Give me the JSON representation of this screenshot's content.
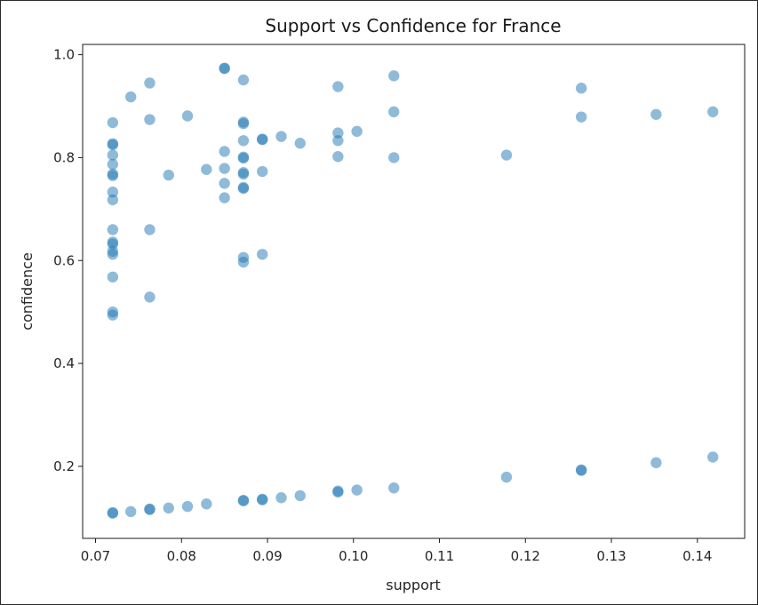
{
  "chart_data": {
    "type": "scatter",
    "title": "Support vs Confidence for France",
    "xlabel": "support",
    "ylabel": "confidence",
    "xlim": [
      0.0685,
      0.1455
    ],
    "ylim": [
      0.06,
      1.02
    ],
    "xticks": [
      0.07,
      0.08,
      0.09,
      0.1,
      0.11,
      0.12,
      0.13,
      0.14
    ],
    "xtick_labels": [
      "0.07",
      "0.08",
      "0.09",
      "0.10",
      "0.11",
      "0.12",
      "0.13",
      "0.14"
    ],
    "yticks": [
      0.2,
      0.4,
      0.6,
      0.8,
      1.0
    ],
    "ytick_labels": [
      "0.2",
      "0.4",
      "0.6",
      "0.8",
      "1.0"
    ],
    "grid": false,
    "marker_color": "#1f77b4",
    "marker_alpha": 0.5,
    "series": [
      {
        "points": [
          [
            0.072,
            0.868
          ],
          [
            0.072,
            0.827
          ],
          [
            0.072,
            0.825
          ],
          [
            0.072,
            0.805
          ],
          [
            0.072,
            0.787
          ],
          [
            0.072,
            0.768
          ],
          [
            0.072,
            0.765
          ],
          [
            0.072,
            0.733
          ],
          [
            0.072,
            0.718
          ],
          [
            0.072,
            0.66
          ],
          [
            0.072,
            0.636
          ],
          [
            0.072,
            0.632
          ],
          [
            0.072,
            0.618
          ],
          [
            0.072,
            0.612
          ],
          [
            0.072,
            0.568
          ],
          [
            0.072,
            0.5
          ],
          [
            0.072,
            0.494
          ],
          [
            0.072,
            0.11
          ],
          [
            0.072,
            0.109
          ],
          [
            0.0741,
            0.918
          ],
          [
            0.0741,
            0.112
          ],
          [
            0.0763,
            0.945
          ],
          [
            0.0763,
            0.874
          ],
          [
            0.0763,
            0.66
          ],
          [
            0.0763,
            0.529
          ],
          [
            0.0763,
            0.116
          ],
          [
            0.0763,
            0.117
          ],
          [
            0.0785,
            0.766
          ],
          [
            0.0785,
            0.119
          ],
          [
            0.0807,
            0.881
          ],
          [
            0.0807,
            0.122
          ],
          [
            0.0829,
            0.777
          ],
          [
            0.0829,
            0.127
          ],
          [
            0.085,
            0.974
          ],
          [
            0.085,
            0.973
          ],
          [
            0.085,
            0.812
          ],
          [
            0.085,
            0.779
          ],
          [
            0.085,
            0.75
          ],
          [
            0.085,
            0.722
          ],
          [
            0.0872,
            0.951
          ],
          [
            0.0872,
            0.869
          ],
          [
            0.0872,
            0.866
          ],
          [
            0.0872,
            0.833
          ],
          [
            0.0872,
            0.801
          ],
          [
            0.0872,
            0.799
          ],
          [
            0.0872,
            0.771
          ],
          [
            0.0872,
            0.768
          ],
          [
            0.0872,
            0.742
          ],
          [
            0.0872,
            0.74
          ],
          [
            0.0872,
            0.606
          ],
          [
            0.0872,
            0.597
          ],
          [
            0.0872,
            0.133
          ],
          [
            0.0872,
            0.134
          ],
          [
            0.0894,
            0.836
          ],
          [
            0.0894,
            0.835
          ],
          [
            0.0894,
            0.773
          ],
          [
            0.0894,
            0.612
          ],
          [
            0.0894,
            0.135
          ],
          [
            0.0894,
            0.136
          ],
          [
            0.0916,
            0.841
          ],
          [
            0.0916,
            0.139
          ],
          [
            0.0938,
            0.828
          ],
          [
            0.0938,
            0.143
          ],
          [
            0.0982,
            0.938
          ],
          [
            0.0982,
            0.848
          ],
          [
            0.0982,
            0.833
          ],
          [
            0.0982,
            0.802
          ],
          [
            0.0982,
            0.15
          ],
          [
            0.0982,
            0.152
          ],
          [
            0.1004,
            0.851
          ],
          [
            0.1004,
            0.154
          ],
          [
            0.1047,
            0.959
          ],
          [
            0.1047,
            0.889
          ],
          [
            0.1047,
            0.8
          ],
          [
            0.1047,
            0.158
          ],
          [
            0.1178,
            0.805
          ],
          [
            0.1178,
            0.179
          ],
          [
            0.1265,
            0.935
          ],
          [
            0.1265,
            0.879
          ],
          [
            0.1265,
            0.192
          ],
          [
            0.1265,
            0.193
          ],
          [
            0.1352,
            0.884
          ],
          [
            0.1352,
            0.207
          ],
          [
            0.1418,
            0.889
          ],
          [
            0.1418,
            0.218
          ]
        ]
      }
    ]
  }
}
